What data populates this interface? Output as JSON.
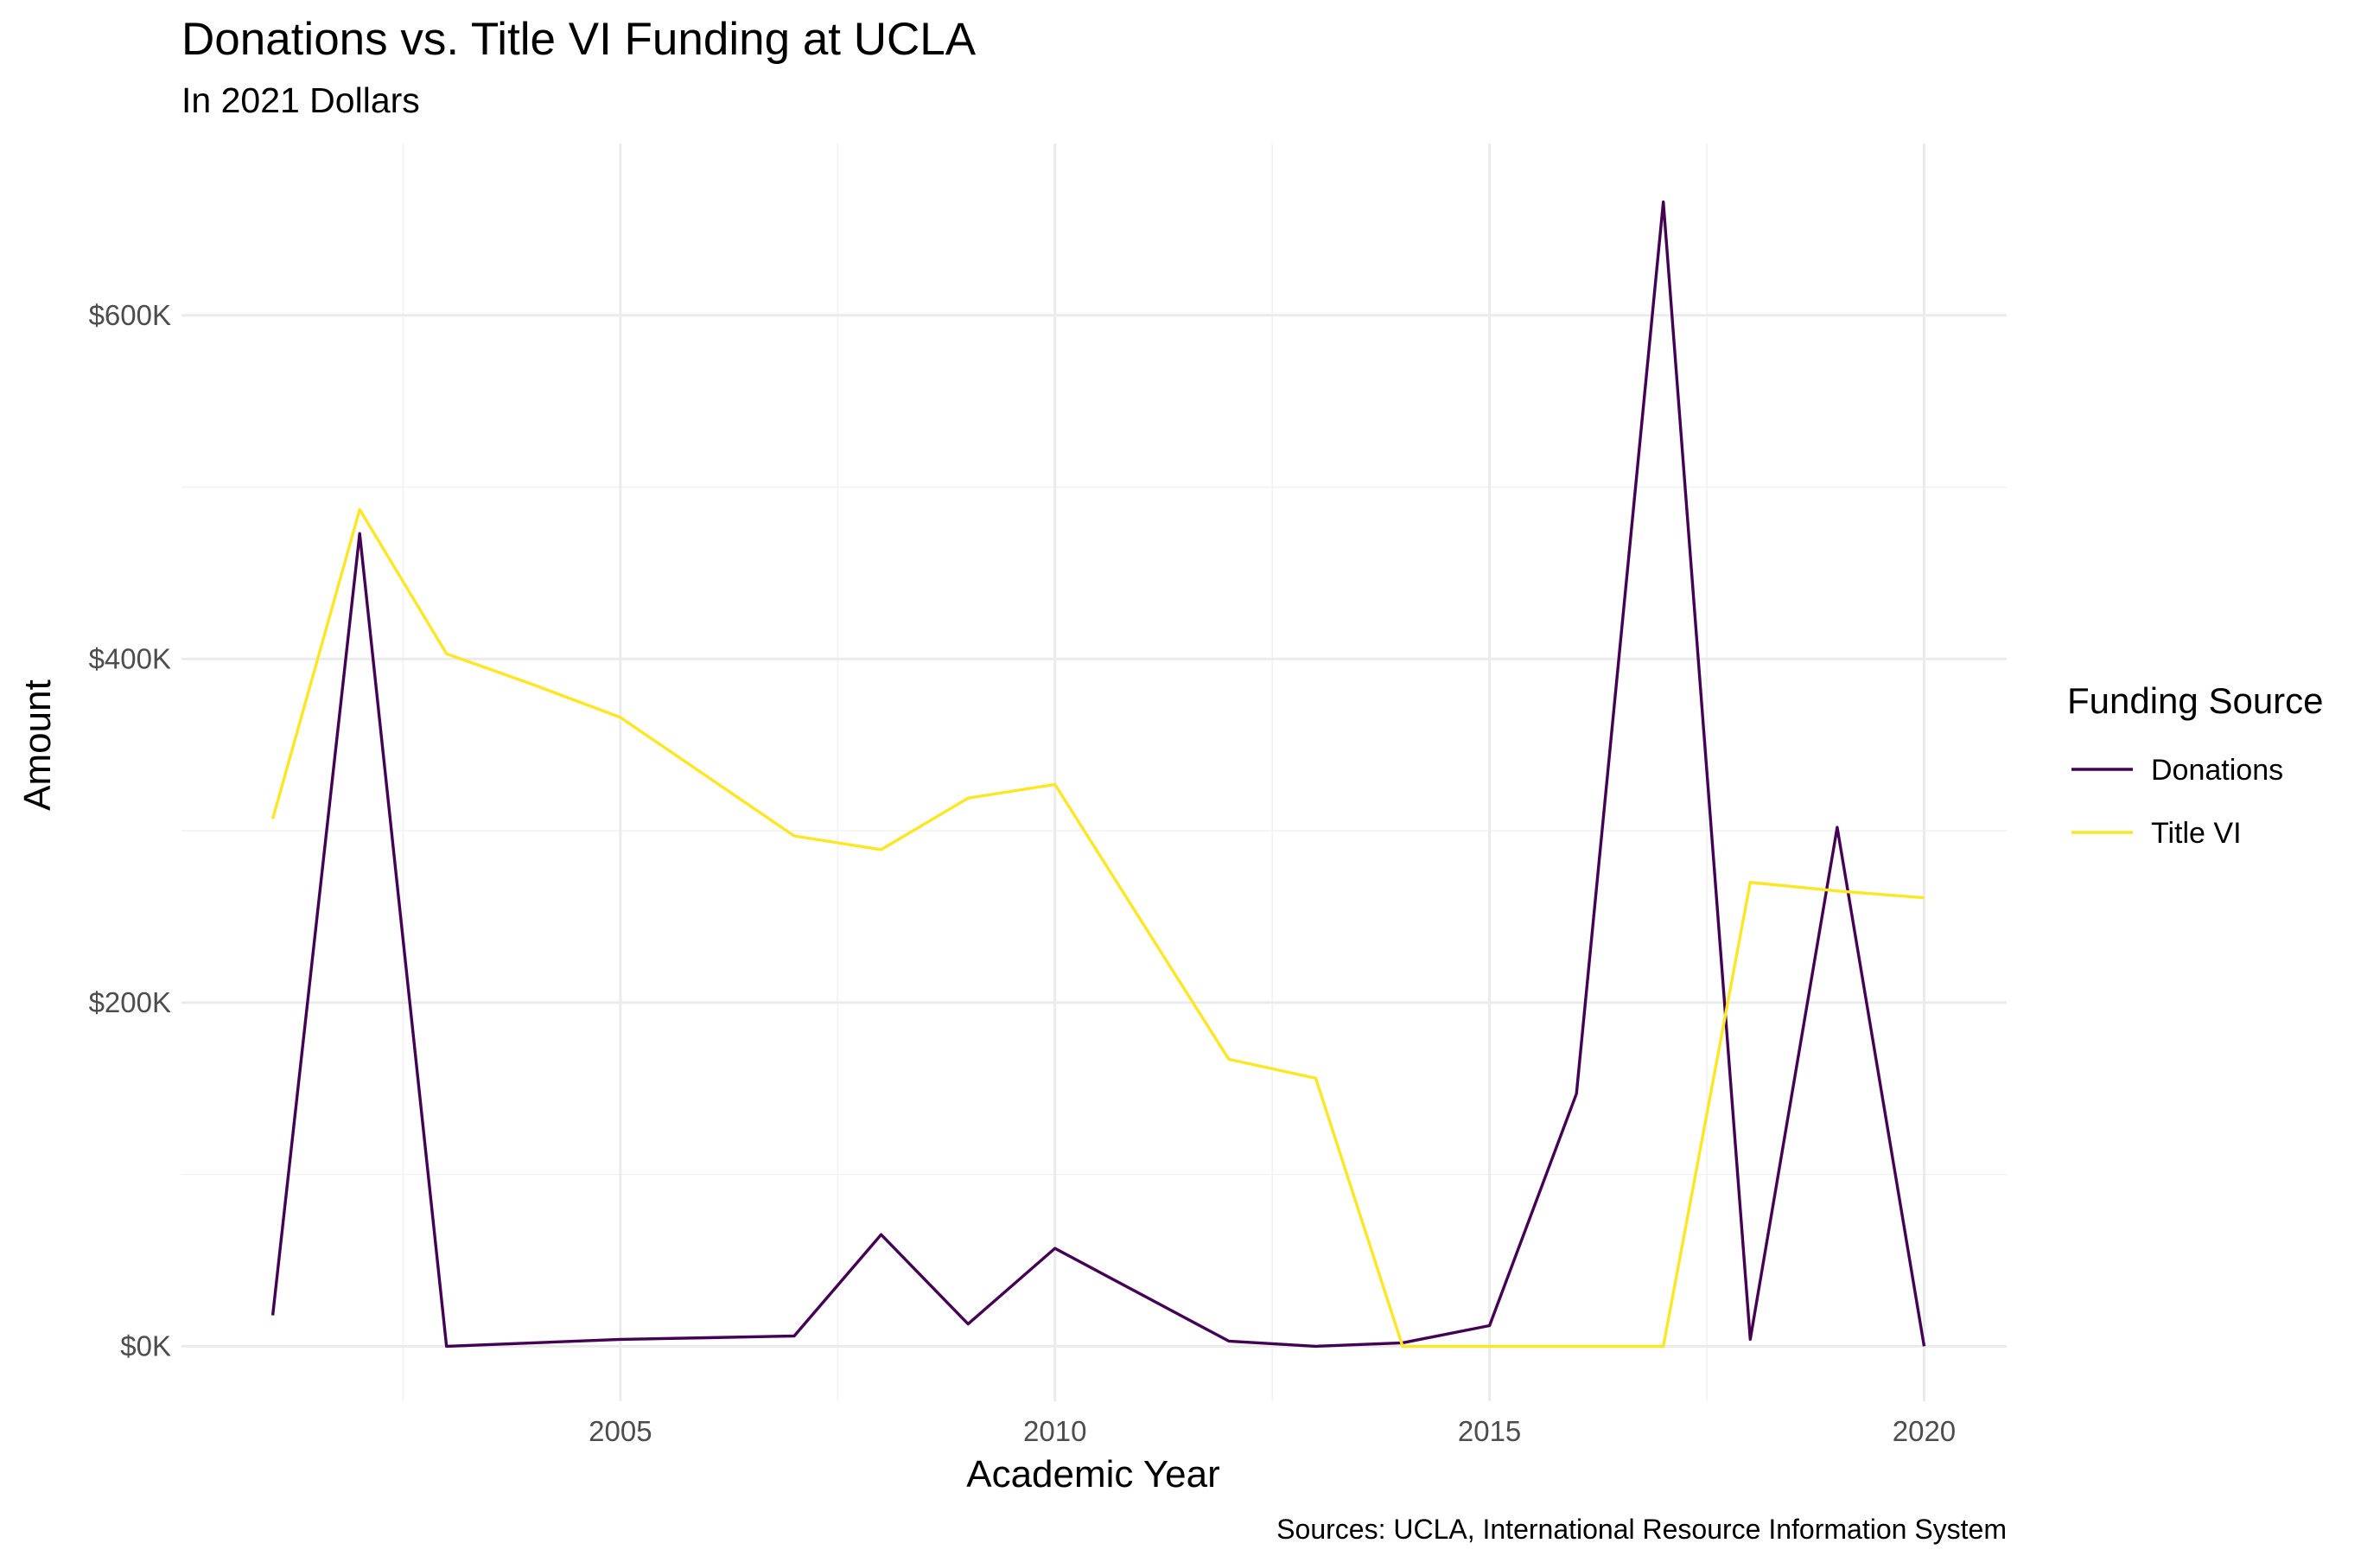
{
  "chart_data": {
    "type": "line",
    "title": "Donations vs. Title VI Funding at UCLA",
    "subtitle": "In 2021 Dollars",
    "xlabel": "Academic Year",
    "ylabel": "Amount",
    "caption": "Sources: UCLA, International Resource Information System",
    "x": [
      2001,
      2002,
      2003,
      2004,
      2005,
      2006,
      2007,
      2008,
      2009,
      2010,
      2011,
      2012,
      2013,
      2014,
      2015,
      2016,
      2017,
      2018,
      2019,
      2020
    ],
    "xlim": [
      1999.95,
      2020.95
    ],
    "ylim": [
      -32000,
      700000
    ],
    "x_ticks": [
      2005,
      2010,
      2015,
      2020
    ],
    "x_tick_labels": [
      "2005",
      "2010",
      "2015",
      "2020"
    ],
    "y_ticks": [
      0,
      200000,
      400000,
      600000
    ],
    "y_tick_labels": [
      "$0K",
      "$200K",
      "$400K",
      "$600K"
    ],
    "grid": true,
    "legend": {
      "title": "Funding Source",
      "placement": "right"
    },
    "series": [
      {
        "name": "Donations",
        "color": "#440154",
        "values": [
          18000,
          473000,
          0,
          2000,
          4000,
          5000,
          6000,
          65000,
          13000,
          57000,
          30000,
          3000,
          0,
          2000,
          12000,
          147000,
          666000,
          4000,
          302000,
          0
        ]
      },
      {
        "name": "Title VI",
        "color": "#FDE725",
        "values": [
          307000,
          487000,
          403000,
          385000,
          366000,
          null,
          297000,
          289000,
          319000,
          327000,
          null,
          167000,
          156000,
          0,
          0,
          0,
          0,
          270000,
          265000,
          261000
        ]
      }
    ]
  }
}
